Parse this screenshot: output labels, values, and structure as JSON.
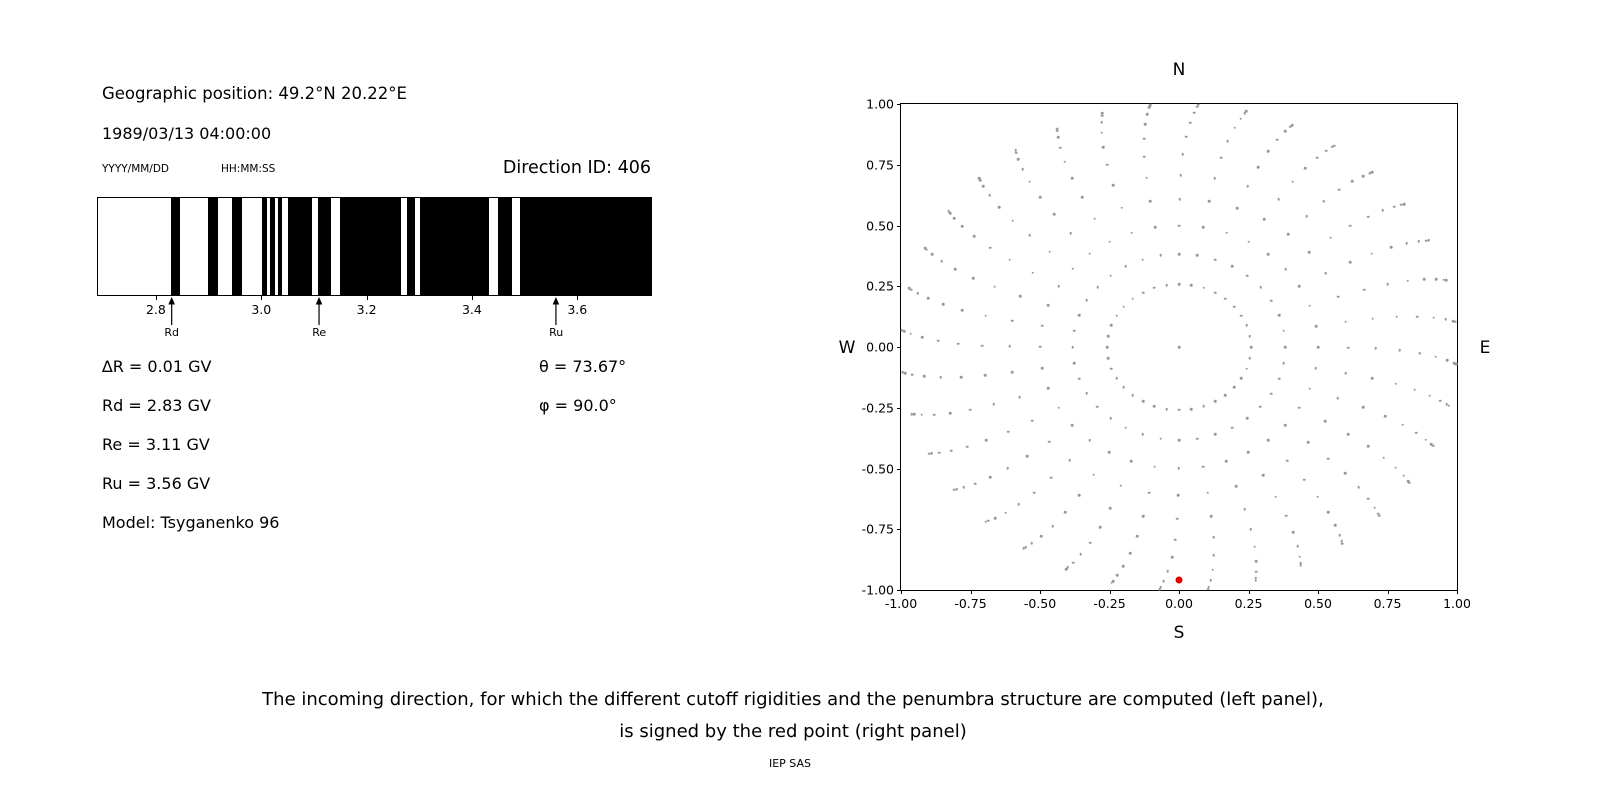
{
  "left_panel": {
    "geo_position": "Geographic position: 49.2°N 20.22°E",
    "datetime": "1989/03/13 04:00:00",
    "date_format_label": "YYYY/MM/DD",
    "time_format_label": "HH:MM:SS",
    "direction_id": "Direction ID: 406",
    "delta_r": "∆R = 0.01 GV",
    "rd": "Rd = 2.83 GV",
    "re": "Re = 3.11 GV",
    "ru": "Ru = 3.56 GV",
    "model": "Model: Tsyganenko 96",
    "theta": "θ = 73.67°",
    "phi": "φ = 90.0°"
  },
  "caption": {
    "line1": "The incoming direction, for which the different cutoff rigidities and the penumbra structure are computed (left panel),",
    "line2": "is signed by the red point (right panel)",
    "credit": "IEP SAS"
  },
  "chart_data": [
    {
      "type": "bar",
      "name": "penumbra-structure",
      "description": "Penumbra structure barcode: black bands over rigidity (GV)",
      "xlim": [
        2.69,
        3.74
      ],
      "xticks": [
        2.8,
        3.0,
        3.2,
        3.4,
        3.6
      ],
      "black_bands_GV": [
        [
          2.829,
          2.846
        ],
        [
          2.899,
          2.918
        ],
        [
          2.944,
          2.963
        ],
        [
          3.002,
          3.011
        ],
        [
          3.017,
          3.026
        ],
        [
          3.032,
          3.04
        ],
        [
          3.051,
          3.097
        ],
        [
          3.108,
          3.133
        ],
        [
          3.15,
          3.266
        ],
        [
          3.277,
          3.291
        ],
        [
          3.302,
          3.433
        ],
        [
          3.45,
          3.477
        ],
        [
          3.492,
          3.74
        ]
      ],
      "markers": [
        {
          "label": "Rd",
          "x": 2.83
        },
        {
          "label": "Re",
          "x": 3.11
        },
        {
          "label": "Ru",
          "x": 3.56
        }
      ],
      "values": {
        "delta_R_GV": 0.01,
        "Rd_GV": 2.83,
        "Re_GV": 3.11,
        "Ru_GV": 3.56,
        "theta_deg": 73.67,
        "phi_deg": 90.0,
        "model": "Tsyganenko 96",
        "direction_id": 406
      }
    },
    {
      "type": "scatter",
      "name": "incoming-direction-grid",
      "xlim": [
        -1,
        1
      ],
      "ylim": [
        -1,
        1
      ],
      "xticks": [
        -1,
        -0.75,
        -0.5,
        -0.25,
        0,
        0.25,
        0.5,
        0.75,
        1
      ],
      "yticks": [
        -1,
        -0.75,
        -0.5,
        -0.25,
        0,
        0.25,
        0.5,
        0.75,
        1
      ],
      "compass": {
        "top": "N",
        "bottom": "S",
        "left": "W",
        "right": "E"
      },
      "direction_grid": {
        "azimuth_step_deg": 10,
        "zenith_deg": [
          15,
          22.5,
          30,
          37.5,
          45,
          52.5,
          60,
          67.5,
          75,
          82.5,
          90
        ],
        "radius_rule": "r = sin(zenith)",
        "outer_bend_deg": 4,
        "center_point": [
          0,
          0
        ]
      },
      "red_point": {
        "x": 0.0,
        "y": -0.96
      },
      "dot_color": "#999999",
      "red_color": "#e00000",
      "grid": "off",
      "legend": "none"
    }
  ]
}
